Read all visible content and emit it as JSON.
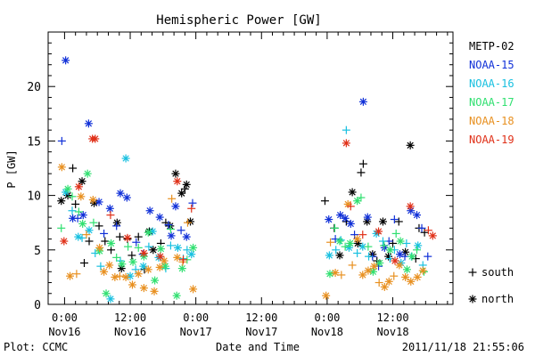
{
  "chart_data": {
    "type": "scatter",
    "title": "Hemispheric Power [GW]",
    "ylabel": "P [GW]",
    "xlabel": "Date and Time",
    "ylim": [
      0,
      25
    ],
    "xlim": [
      -3,
      71
    ],
    "y_ticks": [
      "0",
      "5",
      "10",
      "15",
      "20"
    ],
    "x_ticks": [
      {
        "t": 0,
        "line1": "0:00",
        "line2": "Nov16"
      },
      {
        "t": 12,
        "line1": "12:00",
        "line2": "Nov16"
      },
      {
        "t": 24,
        "line1": "0:00",
        "line2": "Nov17"
      },
      {
        "t": 36,
        "line1": "12:00",
        "line2": "Nov17"
      },
      {
        "t": 48,
        "line1": "0:00",
        "line2": "Nov18"
      },
      {
        "t": 60,
        "line1": "12:00",
        "line2": "Nov18"
      }
    ],
    "marker_legend": [
      {
        "symbol": "+",
        "label": "south"
      },
      {
        "symbol": "*",
        "label": "north"
      }
    ],
    "series": [
      {
        "name": "METP-02",
        "color": "#000000",
        "points": [
          [
            -0.6,
            9.5,
            "*"
          ],
          [
            0.6,
            10.0,
            "*"
          ],
          [
            1.5,
            12.5,
            "+"
          ],
          [
            2.0,
            9.2,
            "+"
          ],
          [
            3.2,
            11.3,
            "*"
          ],
          [
            3.6,
            3.8,
            "+"
          ],
          [
            4.5,
            5.8,
            "+"
          ],
          [
            5.4,
            9.3,
            "*"
          ],
          [
            6.3,
            7.2,
            "+"
          ],
          [
            7.4,
            5.8,
            "+"
          ],
          [
            8.5,
            5.0,
            "+"
          ],
          [
            9.6,
            7.5,
            "*"
          ],
          [
            10.1,
            6.2,
            "+"
          ],
          [
            10.4,
            3.3,
            "*"
          ],
          [
            11.5,
            6.0,
            "+"
          ],
          [
            12.3,
            4.5,
            "+"
          ],
          [
            13.5,
            6.2,
            "+"
          ],
          [
            14.6,
            3.2,
            "+"
          ],
          [
            15.5,
            6.7,
            "*"
          ],
          [
            16.2,
            5.0,
            "*"
          ],
          [
            17.6,
            5.6,
            "+"
          ],
          [
            18.5,
            7.5,
            "+"
          ],
          [
            19.3,
            7.2,
            "*"
          ],
          [
            20.3,
            12.0,
            "*"
          ],
          [
            21.4,
            10.2,
            "*"
          ],
          [
            22.0,
            10.6,
            "+"
          ],
          [
            22.3,
            11.0,
            "*"
          ],
          [
            23.0,
            7.6,
            "*"
          ],
          [
            47.6,
            9.5,
            "+"
          ],
          [
            49.3,
            7.0,
            "+"
          ],
          [
            50.3,
            4.5,
            "*"
          ],
          [
            51.5,
            7.6,
            "+"
          ],
          [
            52.6,
            10.3,
            "*"
          ],
          [
            53.6,
            5.6,
            "*"
          ],
          [
            54.2,
            12.1,
            "+"
          ],
          [
            54.6,
            12.9,
            "+"
          ],
          [
            55.3,
            7.6,
            "*"
          ],
          [
            56.3,
            4.6,
            "*"
          ],
          [
            57.1,
            4.0,
            "+"
          ],
          [
            58.2,
            7.6,
            "*"
          ],
          [
            59.2,
            4.4,
            "*"
          ],
          [
            60.0,
            5.6,
            "+"
          ],
          [
            61.1,
            7.6,
            "+"
          ],
          [
            62.3,
            4.8,
            "*"
          ],
          [
            63.2,
            14.6,
            "*"
          ],
          [
            64.2,
            4.2,
            "+"
          ],
          [
            64.8,
            7.0,
            "+"
          ],
          [
            65.8,
            6.6,
            "+"
          ]
        ]
      },
      {
        "name": "NOAA-15",
        "color": "#1030d8",
        "points": [
          [
            -0.5,
            15.0,
            "+"
          ],
          [
            0.2,
            22.4,
            "*"
          ],
          [
            1.5,
            7.9,
            "*"
          ],
          [
            2.4,
            7.9,
            "+"
          ],
          [
            3.4,
            8.2,
            "*"
          ],
          [
            4.4,
            16.6,
            "*"
          ],
          [
            6.3,
            9.4,
            "*"
          ],
          [
            7.2,
            6.5,
            "+"
          ],
          [
            8.3,
            8.8,
            "*"
          ],
          [
            9.5,
            7.2,
            "+"
          ],
          [
            10.2,
            10.2,
            "*"
          ],
          [
            11.4,
            9.8,
            "*"
          ],
          [
            13.1,
            5.7,
            "+"
          ],
          [
            14.3,
            4.6,
            "+"
          ],
          [
            15.6,
            8.6,
            "*"
          ],
          [
            17.4,
            8.0,
            "*"
          ],
          [
            19.0,
            7.3,
            "+"
          ],
          [
            19.5,
            6.3,
            "*"
          ],
          [
            20.3,
            9.0,
            "*"
          ],
          [
            21.3,
            6.8,
            "+"
          ],
          [
            22.3,
            6.2,
            "*"
          ],
          [
            23.4,
            9.3,
            "+"
          ],
          [
            48.3,
            7.8,
            "*"
          ],
          [
            49.5,
            6.0,
            "+"
          ],
          [
            50.4,
            8.2,
            "*"
          ],
          [
            51.3,
            7.9,
            "*"
          ],
          [
            52.3,
            7.4,
            "*"
          ],
          [
            53.0,
            6.4,
            "+"
          ],
          [
            54.6,
            18.6,
            "*"
          ],
          [
            55.4,
            8.0,
            "*"
          ],
          [
            56.3,
            4.4,
            "+"
          ],
          [
            57.4,
            3.5,
            "+"
          ],
          [
            58.5,
            5.2,
            "*"
          ],
          [
            59.3,
            5.8,
            "+"
          ],
          [
            60.3,
            7.8,
            "+"
          ],
          [
            61.3,
            4.6,
            "*"
          ],
          [
            62.2,
            4.4,
            "+"
          ],
          [
            63.3,
            8.6,
            "*"
          ],
          [
            64.4,
            8.2,
            "*"
          ],
          [
            65.3,
            7.0,
            "+"
          ],
          [
            66.4,
            4.4,
            "+"
          ]
        ]
      },
      {
        "name": "NOAA-16",
        "color": "#18c0e0",
        "points": [
          [
            0.2,
            10.3,
            "*"
          ],
          [
            1.4,
            8.6,
            "+"
          ],
          [
            2.5,
            6.2,
            "*"
          ],
          [
            3.2,
            6.1,
            "+"
          ],
          [
            4.5,
            6.8,
            "*"
          ],
          [
            5.6,
            4.7,
            "+"
          ],
          [
            6.6,
            3.5,
            "+"
          ],
          [
            8.4,
            0.5,
            "*"
          ],
          [
            10.2,
            4.0,
            "+"
          ],
          [
            11.2,
            13.4,
            "*"
          ],
          [
            12.0,
            2.6,
            "*"
          ],
          [
            13.0,
            3.2,
            "+"
          ],
          [
            14.4,
            3.5,
            "*"
          ],
          [
            15.4,
            5.3,
            "+"
          ],
          [
            16.1,
            6.7,
            "*"
          ],
          [
            17.2,
            4.3,
            "*"
          ],
          [
            18.5,
            3.3,
            "+"
          ],
          [
            19.4,
            5.4,
            "+"
          ],
          [
            20.7,
            5.2,
            "*"
          ],
          [
            21.7,
            4.2,
            "+"
          ],
          [
            22.4,
            5.0,
            "+"
          ],
          [
            23.2,
            4.6,
            "*"
          ],
          [
            48.4,
            4.5,
            "*"
          ],
          [
            49.6,
            5.0,
            "+"
          ],
          [
            50.5,
            5.9,
            "+"
          ],
          [
            51.5,
            16.0,
            "+"
          ],
          [
            52.0,
            5.2,
            "*"
          ],
          [
            53.5,
            4.7,
            "+"
          ],
          [
            54.5,
            5.3,
            "*"
          ],
          [
            55.6,
            4.4,
            "+"
          ],
          [
            57.0,
            6.5,
            "*"
          ],
          [
            58.2,
            5.8,
            "+"
          ],
          [
            59.5,
            4.2,
            "+"
          ],
          [
            60.3,
            5.0,
            "+"
          ],
          [
            61.5,
            3.8,
            "*"
          ],
          [
            62.5,
            5.6,
            "+"
          ],
          [
            63.4,
            4.4,
            "+"
          ],
          [
            64.6,
            5.4,
            "*"
          ],
          [
            65.5,
            3.6,
            "+"
          ]
        ]
      },
      {
        "name": "NOAA-17",
        "color": "#30e070",
        "points": [
          [
            -0.6,
            7.0,
            "+"
          ],
          [
            0.6,
            10.6,
            "*"
          ],
          [
            1.4,
            9.9,
            "+"
          ],
          [
            2.6,
            8.5,
            "+"
          ],
          [
            3.3,
            7.4,
            "*"
          ],
          [
            4.2,
            12.0,
            "*"
          ],
          [
            5.3,
            7.5,
            "+"
          ],
          [
            6.4,
            4.9,
            "*"
          ],
          [
            7.6,
            1.0,
            "*"
          ],
          [
            8.5,
            5.6,
            "*"
          ],
          [
            9.5,
            4.3,
            "+"
          ],
          [
            10.5,
            3.7,
            "*"
          ],
          [
            11.6,
            5.3,
            "+"
          ],
          [
            12.5,
            3.9,
            "*"
          ],
          [
            13.5,
            5.2,
            "+"
          ],
          [
            14.5,
            4.4,
            "*"
          ],
          [
            15.3,
            6.6,
            "*"
          ],
          [
            16.5,
            2.2,
            "*"
          ],
          [
            17.6,
            5.1,
            "*"
          ],
          [
            18.4,
            3.5,
            "*"
          ],
          [
            19.4,
            6.9,
            "+"
          ],
          [
            20.5,
            0.8,
            "*"
          ],
          [
            21.5,
            3.3,
            "*"
          ],
          [
            22.4,
            4.1,
            "+"
          ],
          [
            23.5,
            5.2,
            "*"
          ],
          [
            48.5,
            2.8,
            "*"
          ],
          [
            49.4,
            7.0,
            "+"
          ],
          [
            50.3,
            5.8,
            "*"
          ],
          [
            51.3,
            5.3,
            "+"
          ],
          [
            52.2,
            5.6,
            "*"
          ],
          [
            53.5,
            9.5,
            "*"
          ],
          [
            54.2,
            9.8,
            "+"
          ],
          [
            55.5,
            5.3,
            "+"
          ],
          [
            56.4,
            3.0,
            "*"
          ],
          [
            57.6,
            3.8,
            "*"
          ],
          [
            58.4,
            5.4,
            "+"
          ],
          [
            59.5,
            5.0,
            "*"
          ],
          [
            60.6,
            6.5,
            "+"
          ],
          [
            61.4,
            5.8,
            "*"
          ],
          [
            62.6,
            3.2,
            "*"
          ],
          [
            63.5,
            4.4,
            "*"
          ],
          [
            64.4,
            5.0,
            "+"
          ],
          [
            65.7,
            3.0,
            "+"
          ]
        ]
      },
      {
        "name": "NOAA-18",
        "color": "#e89020",
        "points": [
          [
            -0.5,
            12.6,
            "*"
          ],
          [
            1.0,
            2.6,
            "*"
          ],
          [
            2.2,
            2.8,
            "+"
          ],
          [
            3.0,
            9.9,
            "*"
          ],
          [
            4.0,
            6.4,
            "+"
          ],
          [
            5.2,
            9.6,
            "*"
          ],
          [
            6.4,
            5.2,
            "*"
          ],
          [
            7.2,
            3.0,
            "*"
          ],
          [
            8.2,
            3.6,
            "*"
          ],
          [
            9.2,
            2.5,
            "*"
          ],
          [
            10.1,
            2.6,
            "+"
          ],
          [
            11.2,
            2.5,
            "*"
          ],
          [
            12.4,
            1.8,
            "*"
          ],
          [
            13.5,
            2.8,
            "*"
          ],
          [
            14.5,
            1.5,
            "*"
          ],
          [
            15.3,
            3.2,
            "*"
          ],
          [
            16.4,
            1.2,
            "*"
          ],
          [
            17.4,
            3.4,
            "*"
          ],
          [
            18.2,
            4.0,
            "*"
          ],
          [
            19.6,
            9.7,
            "+"
          ],
          [
            20.6,
            4.3,
            "*"
          ],
          [
            21.6,
            3.9,
            "+"
          ],
          [
            22.5,
            7.5,
            "+"
          ],
          [
            23.5,
            1.4,
            "*"
          ],
          [
            47.8,
            0.8,
            "*"
          ],
          [
            48.6,
            5.7,
            "+"
          ],
          [
            49.5,
            2.9,
            "*"
          ],
          [
            50.6,
            2.7,
            "+"
          ],
          [
            51.8,
            9.2,
            "*"
          ],
          [
            52.6,
            3.6,
            "+"
          ],
          [
            53.5,
            6.0,
            "*"
          ],
          [
            54.5,
            2.7,
            "*"
          ],
          [
            55.5,
            3.1,
            "*"
          ],
          [
            56.6,
            3.5,
            "*"
          ],
          [
            57.5,
            2.0,
            "+"
          ],
          [
            58.5,
            1.6,
            "*"
          ],
          [
            59.3,
            2.1,
            "*"
          ],
          [
            60.2,
            2.6,
            "+"
          ],
          [
            61.2,
            3.6,
            "*"
          ],
          [
            62.3,
            2.5,
            "*"
          ],
          [
            63.3,
            2.1,
            "*"
          ],
          [
            64.5,
            2.5,
            "*"
          ],
          [
            65.5,
            3.1,
            "*"
          ]
        ]
      },
      {
        "name": "NOAA-19",
        "color": "#e03018",
        "points": [
          [
            -0.1,
            5.8,
            "*"
          ],
          [
            2.6,
            10.8,
            "*"
          ],
          [
            5.1,
            15.2,
            "*"
          ],
          [
            5.6,
            15.2,
            "*"
          ],
          [
            8.4,
            8.2,
            "+"
          ],
          [
            11.5,
            6.1,
            "*"
          ],
          [
            14.5,
            4.7,
            "*"
          ],
          [
            17.5,
            4.4,
            "*"
          ],
          [
            20.6,
            11.3,
            "*"
          ],
          [
            21.7,
            4.1,
            "+"
          ],
          [
            23.2,
            8.8,
            "+"
          ],
          [
            51.5,
            14.8,
            "*"
          ],
          [
            52.3,
            9.0,
            "+"
          ],
          [
            54.5,
            6.4,
            "+"
          ],
          [
            57.4,
            6.7,
            "*"
          ],
          [
            60.4,
            4.0,
            "*"
          ],
          [
            63.2,
            9.0,
            "*"
          ],
          [
            66.5,
            6.8,
            "+"
          ],
          [
            67.3,
            6.3,
            "*"
          ]
        ]
      }
    ]
  },
  "footer": {
    "left": "Plot: CCMC",
    "right": "2011/11/18 21:55:06"
  }
}
